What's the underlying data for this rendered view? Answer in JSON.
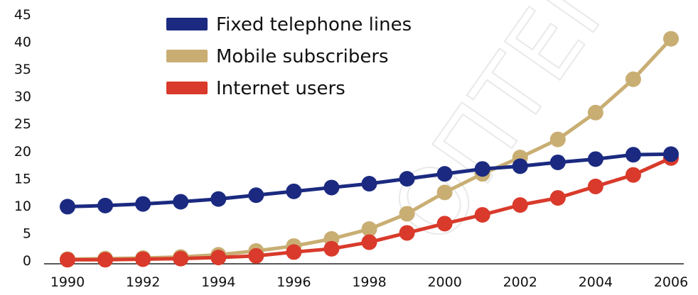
{
  "chart_data": {
    "type": "line",
    "title": "",
    "xlabel": "",
    "ylabel": "",
    "x": [
      1990,
      1991,
      1992,
      1993,
      1994,
      1995,
      1996,
      1997,
      1998,
      1999,
      2000,
      2001,
      2002,
      2003,
      2004,
      2005,
      2006
    ],
    "x_ticks": [
      "1990",
      "1992",
      "1994",
      "1996",
      "1998",
      "2000",
      "2002",
      "2004",
      "2006"
    ],
    "y_ticks": [
      "0",
      "5",
      "10",
      "15",
      "20",
      "25",
      "30",
      "35",
      "40",
      "45"
    ],
    "xlim": [
      1990,
      2006
    ],
    "ylim": [
      0,
      45
    ],
    "grid": false,
    "legend_position": "top-center",
    "series": [
      {
        "name": "Fixed telephone lines",
        "color": "#1b2a80",
        "values": [
          9.8,
          10.0,
          10.3,
          10.7,
          11.2,
          11.9,
          12.6,
          13.3,
          14.0,
          14.9,
          15.8,
          16.7,
          17.2,
          17.9,
          18.5,
          19.3,
          19.4
        ]
      },
      {
        "name": "Mobile subscribers",
        "color": "#c9ae73",
        "values": [
          0.2,
          0.3,
          0.4,
          0.6,
          1.0,
          1.7,
          2.6,
          3.9,
          5.7,
          8.5,
          12.4,
          15.8,
          18.8,
          22.1,
          27.0,
          33.1,
          40.5
        ]
      },
      {
        "name": "Internet users",
        "color": "#d93a2b",
        "values": [
          0.1,
          0.1,
          0.2,
          0.3,
          0.5,
          0.8,
          1.5,
          2.1,
          3.3,
          5.0,
          6.7,
          8.3,
          10.1,
          11.4,
          13.5,
          15.6,
          18.7
        ]
      }
    ]
  }
}
